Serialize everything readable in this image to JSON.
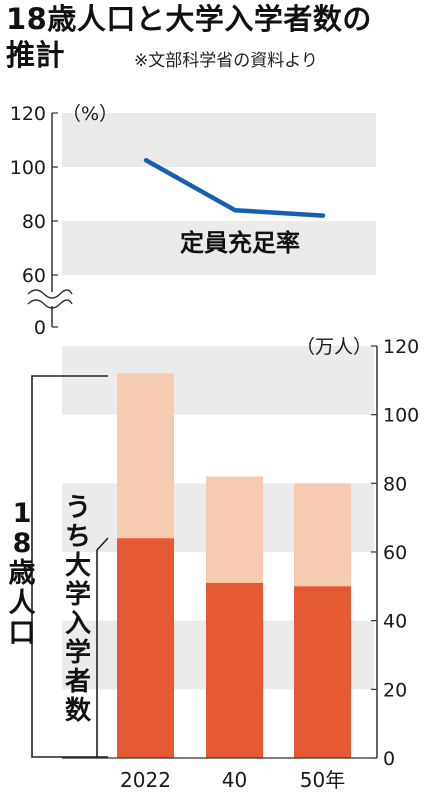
{
  "title": {
    "line1": "18歳人口と大学入学者数の",
    "line2": "推計",
    "source": "※文部科学省の資料より"
  },
  "colors": {
    "line": "#1560b0",
    "band": "#ebebeb",
    "bar_total": "#f7cbb2",
    "bar_university": "#e55a35",
    "text": "#1a1a1a"
  },
  "chart_data": [
    {
      "type": "line",
      "unit": "（%）",
      "series": [
        {
          "name": "定員充足率",
          "x": [
            "2022",
            "40",
            "50年"
          ],
          "values": [
            102.5,
            84,
            82
          ]
        }
      ],
      "ylim": [
        0,
        120
      ],
      "yaxis_break": "60-0",
      "yticks": [
        "120",
        "100",
        "80",
        "60",
        "0"
      ],
      "grid": "alternating-bands",
      "label_position": "below-line"
    },
    {
      "type": "bar",
      "unit": "（万人）",
      "categories": [
        "2022",
        "40",
        "50年"
      ],
      "series": [
        {
          "name": "18歳人口",
          "values": [
            112,
            82,
            80
          ]
        },
        {
          "name": "うち大学入学者数",
          "values": [
            64,
            51,
            50
          ]
        }
      ],
      "mode": "overlay",
      "ylim": [
        0,
        120
      ],
      "yticks": [
        "120",
        "100",
        "80",
        "60",
        "40",
        "20",
        "0"
      ],
      "y_axis_side": "right",
      "grid": "alternating-bands",
      "legend": "left-bracket-labels"
    }
  ]
}
